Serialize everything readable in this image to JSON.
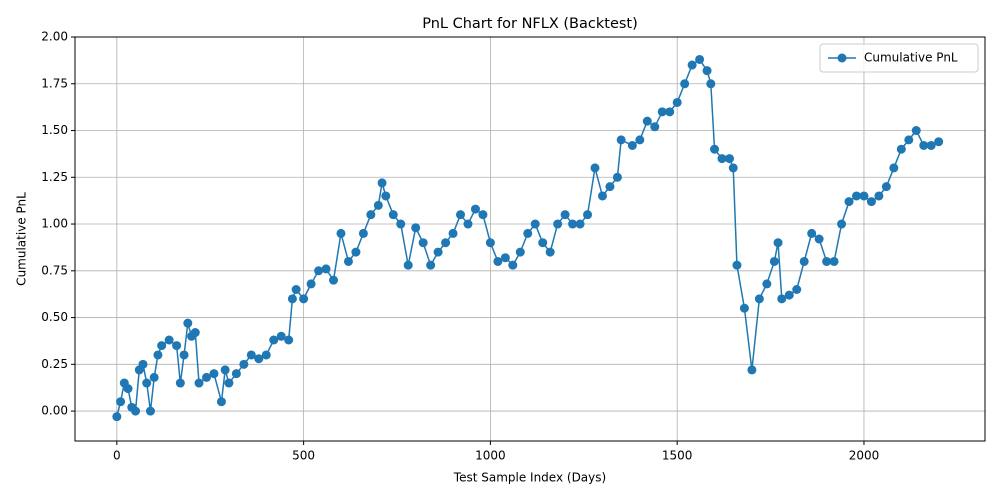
{
  "chart_data": {
    "type": "line",
    "title": "PnL Chart for NFLX (Backtest)",
    "x_label": "Test Sample Index (Days)",
    "y_label": "Cumulative PnL",
    "x": [
      0,
      10,
      20,
      30,
      40,
      50,
      60,
      70,
      80,
      90,
      100,
      110,
      120,
      140,
      160,
      170,
      180,
      190,
      200,
      210,
      220,
      240,
      260,
      280,
      290,
      300,
      320,
      340,
      360,
      380,
      400,
      420,
      440,
      460,
      470,
      480,
      500,
      520,
      540,
      560,
      580,
      600,
      620,
      640,
      660,
      680,
      700,
      710,
      720,
      740,
      760,
      780,
      800,
      820,
      840,
      860,
      880,
      900,
      920,
      940,
      960,
      980,
      1000,
      1020,
      1040,
      1060,
      1080,
      1100,
      1120,
      1140,
      1160,
      1180,
      1200,
      1220,
      1240,
      1260,
      1280,
      1300,
      1320,
      1340,
      1350,
      1380,
      1400,
      1420,
      1440,
      1460,
      1480,
      1500,
      1520,
      1540,
      1560,
      1580,
      1590,
      1600,
      1620,
      1640,
      1650,
      1660,
      1680,
      1700,
      1720,
      1740,
      1760,
      1770,
      1780,
      1800,
      1820,
      1840,
      1860,
      1880,
      1900,
      1920,
      1940,
      1960,
      1980,
      2000,
      2020,
      2040,
      2060,
      2080,
      2100,
      2120,
      2140,
      2160,
      2180,
      2200
    ],
    "series": [
      {
        "name": "Cumulative PnL",
        "color": "#1f77b4",
        "values": [
          -0.03,
          0.05,
          0.15,
          0.12,
          0.02,
          0.0,
          0.22,
          0.25,
          0.15,
          0.0,
          0.18,
          0.3,
          0.35,
          0.38,
          0.35,
          0.15,
          0.3,
          0.47,
          0.4,
          0.42,
          0.15,
          0.18,
          0.2,
          0.05,
          0.22,
          0.15,
          0.2,
          0.25,
          0.3,
          0.28,
          0.3,
          0.38,
          0.4,
          0.38,
          0.6,
          0.65,
          0.6,
          0.68,
          0.75,
          0.76,
          0.7,
          0.95,
          0.8,
          0.85,
          0.95,
          1.05,
          1.1,
          1.22,
          1.15,
          1.05,
          1.0,
          0.78,
          0.98,
          0.9,
          0.78,
          0.85,
          0.9,
          0.95,
          1.05,
          1.0,
          1.08,
          1.05,
          0.9,
          0.8,
          0.82,
          0.78,
          0.85,
          0.95,
          1.0,
          0.9,
          0.85,
          1.0,
          1.05,
          1.0,
          1.0,
          1.05,
          1.3,
          1.15,
          1.2,
          1.25,
          1.45,
          1.42,
          1.45,
          1.55,
          1.52,
          1.6,
          1.6,
          1.65,
          1.75,
          1.85,
          1.88,
          1.82,
          1.75,
          1.4,
          1.35,
          1.35,
          1.3,
          0.78,
          0.55,
          0.22,
          0.6,
          0.68,
          0.8,
          0.9,
          0.6,
          0.62,
          0.65,
          0.8,
          0.95,
          0.92,
          0.8,
          0.8,
          1.0,
          1.12,
          1.15,
          1.15,
          1.12,
          1.15,
          1.2,
          1.3,
          1.4,
          1.45,
          1.5,
          1.42,
          1.42,
          1.44
        ]
      }
    ],
    "xlim": [
      -112,
      2324
    ],
    "xticks": [
      0,
      500,
      1000,
      1500,
      2000
    ],
    "ylim": [
      -0.16,
      2.0
    ],
    "yticks": [
      {
        "value": 0,
        "label": "0.00"
      },
      {
        "value": 0.25,
        "label": "0.25"
      },
      {
        "value": 0.5,
        "label": "0.50"
      },
      {
        "value": 0.75,
        "label": "0.75"
      },
      {
        "value": 1,
        "label": "1.00"
      },
      {
        "value": 1.25,
        "label": "1.25"
      },
      {
        "value": 1.5,
        "label": "1.50"
      },
      {
        "value": 1.75,
        "label": "1.75"
      },
      {
        "value": 2,
        "label": "2.00"
      }
    ],
    "grid": true,
    "legend": "upper-right"
  }
}
